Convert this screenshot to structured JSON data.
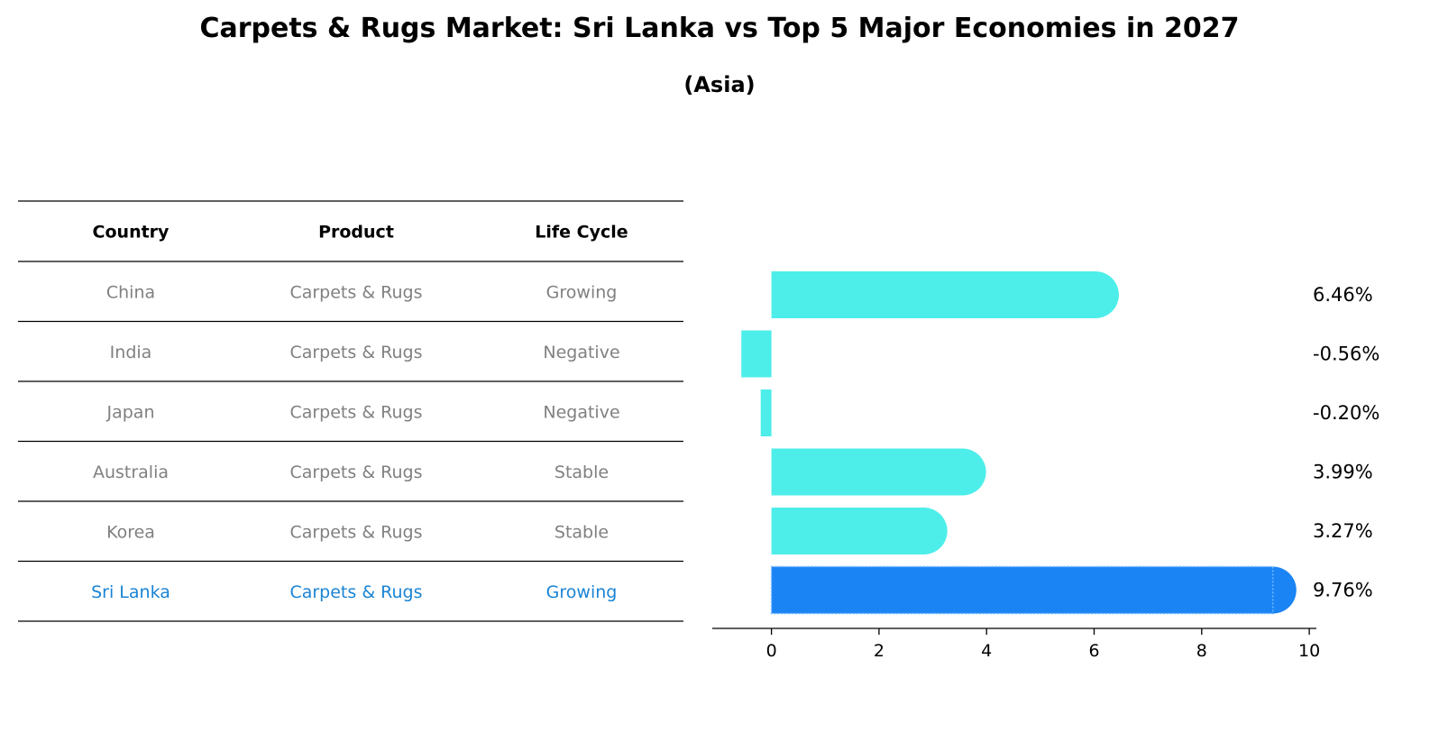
{
  "title": "Carpets & Rugs Market: Sri Lanka vs Top 5 Major Economies in 2027",
  "subtitle": "(Asia)",
  "table": {
    "headers": [
      "Country",
      "Product",
      "Life Cycle"
    ],
    "rows": [
      {
        "country": "China",
        "product": "Carpets & Rugs",
        "life_cycle": "Growing",
        "highlight": false
      },
      {
        "country": "India",
        "product": "Carpets & Rugs",
        "life_cycle": "Negative",
        "highlight": false
      },
      {
        "country": "Japan",
        "product": "Carpets & Rugs",
        "life_cycle": "Negative",
        "highlight": false
      },
      {
        "country": "Australia",
        "product": "Carpets & Rugs",
        "life_cycle": "Stable",
        "highlight": false
      },
      {
        "country": "Korea",
        "product": "Carpets & Rugs",
        "life_cycle": "Stable",
        "highlight": false
      },
      {
        "country": "Sri Lanka",
        "product": "Carpets & Rugs",
        "life_cycle": "Growing",
        "highlight": true
      }
    ]
  },
  "colors": {
    "bar": "#4deeea",
    "highlight_bar": "#1a84f4",
    "highlight_text": "#1a84d4",
    "muted_text": "#808080"
  },
  "chart_data": {
    "type": "bar",
    "orientation": "horizontal",
    "categories": [
      "China",
      "India",
      "Japan",
      "Australia",
      "Korea",
      "Sri Lanka"
    ],
    "values": [
      6.46,
      -0.56,
      -0.2,
      3.99,
      3.27,
      9.76
    ],
    "value_labels": [
      "6.46%",
      "-0.56%",
      "-0.20%",
      "3.99%",
      "3.27%",
      "9.76%"
    ],
    "highlight_index": 5,
    "xlim": [
      -1.1,
      10.3
    ],
    "xticks": [
      0,
      2,
      4,
      6,
      8,
      10
    ],
    "grid": false
  }
}
